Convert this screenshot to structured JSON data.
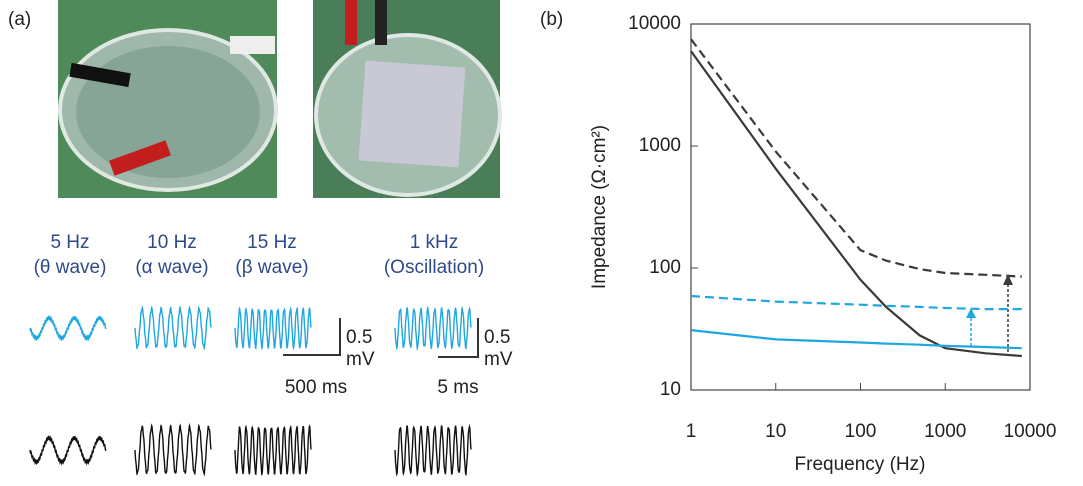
{
  "panel_a": {
    "label": "(a)",
    "conditions": [
      {
        "freq": "5 Hz",
        "desc": "(θ wave)"
      },
      {
        "freq": "10 Hz",
        "desc": "(α wave)"
      },
      {
        "freq": "15 Hz",
        "desc": "(β wave)"
      },
      {
        "freq": "1 kHz",
        "desc": "(Oscillation)"
      }
    ],
    "scale_bars": [
      {
        "amplitude": "0.5",
        "unit": "mV",
        "time": "500 ms"
      },
      {
        "amplitude": "0.5",
        "unit": "mV",
        "time": "5 ms"
      }
    ]
  },
  "chart_data": {
    "type": "line",
    "panel_label": "(b)",
    "xlabel": "Frequency (Hz)",
    "ylabel": "Impedance (Ω·cm²)",
    "xscale": "log",
    "yscale": "log",
    "xlim": [
      1,
      10000
    ],
    "ylim": [
      10,
      10000
    ],
    "xticks": [
      1,
      10,
      100,
      1000,
      10000
    ],
    "yticks": [
      10,
      100,
      1000,
      10000
    ],
    "x": [
      1,
      10,
      100,
      200,
      500,
      1000,
      3000,
      8000
    ],
    "series": [
      {
        "color": "#3a3a3a",
        "dashed": false,
        "values": [
          6000,
          650,
          80,
          48,
          28,
          22,
          20,
          19
        ]
      },
      {
        "color": "#3a3a3a",
        "dashed": true,
        "values": [
          7500,
          900,
          140,
          115,
          98,
          91,
          88,
          85
        ]
      },
      {
        "color": "#1ea7e0",
        "dashed": false,
        "values": [
          31,
          26,
          24.5,
          24,
          23.5,
          23,
          22.5,
          22
        ]
      },
      {
        "color": "#1ea7e0",
        "dashed": true,
        "values": [
          59,
          53,
          50,
          49,
          48,
          47,
          46,
          46
        ]
      }
    ]
  }
}
